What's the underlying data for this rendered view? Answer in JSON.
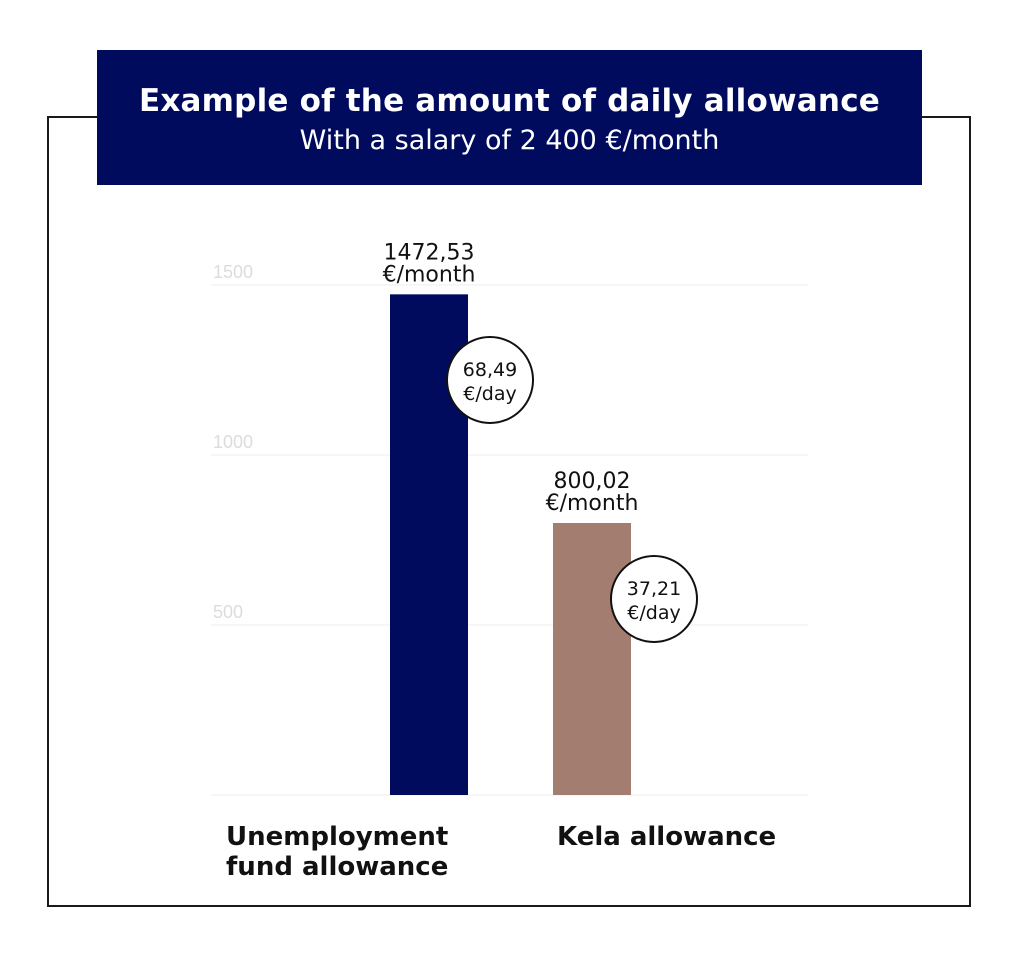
{
  "chart_data": {
    "type": "bar",
    "title": "Example of the amount of daily allowance",
    "subtitle": "With a salary of 2 400 €/month",
    "categories": [
      [
        "Unemployment",
        "fund allowance"
      ],
      [
        "Kela allowance"
      ]
    ],
    "values": [
      1472.53,
      800.02
    ],
    "value_labels": [
      [
        "1472,53",
        "€/month"
      ],
      [
        "800,02",
        "€/month"
      ]
    ],
    "daily_labels": [
      [
        "68,49",
        "€/day"
      ],
      [
        "37,21",
        "€/day"
      ]
    ],
    "bar_colors": [
      "#000b5e",
      "#a27d70"
    ],
    "yticks": [
      500,
      1000,
      1500
    ],
    "ylim": [
      0,
      1500
    ],
    "grid": true,
    "xlabel": "",
    "ylabel": ""
  }
}
